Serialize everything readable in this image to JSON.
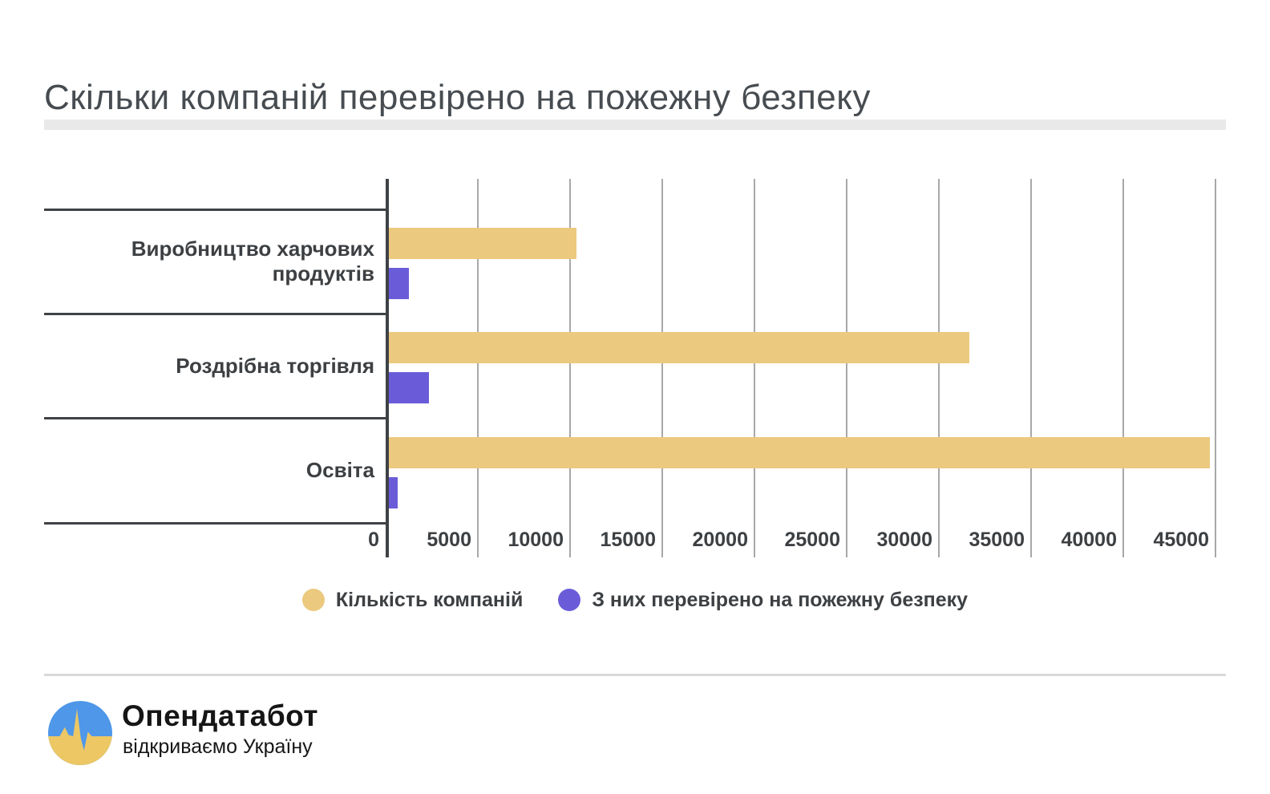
{
  "title": "Скільки компаній перевірено на пожежну безпеку",
  "chart_data": {
    "type": "bar",
    "orientation": "horizontal",
    "title": "Скільки компаній перевірено на пожежну безпеку",
    "categories": [
      "Виробництво харчових продуктів",
      "Роздрібна торгівля",
      "Освіта"
    ],
    "series": [
      {
        "name": "Кількість компаній",
        "key": "companies",
        "color": "#EBC97E",
        "values": [
          10200,
          31600,
          44700
        ]
      },
      {
        "name": "З них перевірено на пожежну безпеку",
        "key": "checked-fire-safety",
        "color": "#6A5CD8",
        "values": [
          1100,
          2200,
          500
        ]
      }
    ],
    "xlabel": "",
    "ylabel": "",
    "xlim": [
      0,
      45000
    ],
    "x_ticks": [
      0,
      5000,
      10000,
      15000,
      20000,
      25000,
      30000,
      35000,
      40000,
      45000
    ],
    "grid": true,
    "legend_position": "bottom"
  },
  "colors": {
    "title_text": "#474C51",
    "axis_and_dividers": "#3F4245",
    "gridline": "#A8A8A8",
    "label_text": "#3D4043",
    "series_companies": "#EBC97E",
    "series_checked": "#6A5CD8",
    "title_underline": "#E9E9E9",
    "footer_separator": "#D9D9D9",
    "logo_blue": "#4E97E9",
    "logo_yellow": "#ECC764"
  },
  "footer": {
    "brand_name": "Опендатабот",
    "brand_tagline": "відкриваємо Україну"
  }
}
